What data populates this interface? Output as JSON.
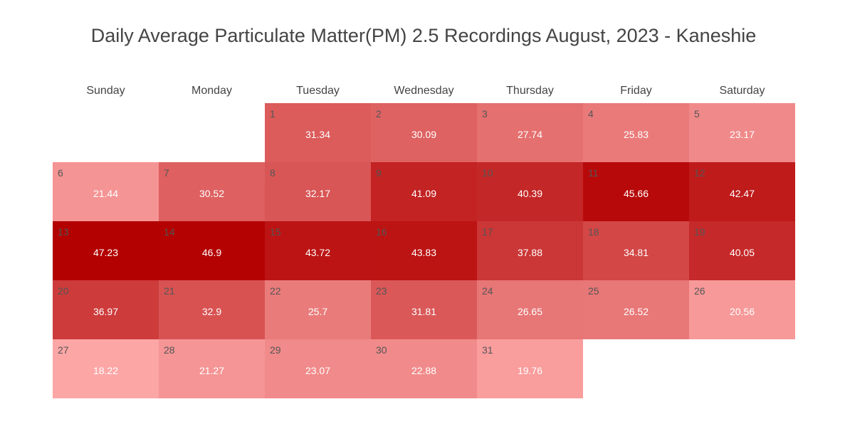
{
  "chart_data": {
    "type": "heatmap",
    "title": "Daily Average Particulate Matter(PM) 2.5 Recordings August, 2023 - Kaneshie",
    "weekdays": [
      "Sunday",
      "Monday",
      "Tuesday",
      "Wednesday",
      "Thursday",
      "Friday",
      "Saturday"
    ],
    "first_weekday_index": 2,
    "days": [
      1,
      2,
      3,
      4,
      5,
      6,
      7,
      8,
      9,
      10,
      11,
      12,
      13,
      14,
      15,
      16,
      17,
      18,
      19,
      20,
      21,
      22,
      23,
      24,
      25,
      26,
      27,
      28,
      29,
      30,
      31
    ],
    "values": [
      31.34,
      30.09,
      27.74,
      25.83,
      23.17,
      21.44,
      30.52,
      32.17,
      41.09,
      40.39,
      45.66,
      42.47,
      47.23,
      46.9,
      43.72,
      43.83,
      37.88,
      34.81,
      40.05,
      36.97,
      32.9,
      25.7,
      31.81,
      26.65,
      26.52,
      20.56,
      18.22,
      21.27,
      23.07,
      22.88,
      19.76
    ],
    "value_labels": [
      "31.34",
      "30.09",
      "27.74",
      "25.83",
      "23.17",
      "21.44",
      "30.52",
      "32.17",
      "41.09",
      "40.39",
      "45.66",
      "42.47",
      "47.23",
      "46.9",
      "43.72",
      "43.83",
      "37.88",
      "34.81",
      "40.05",
      "36.97",
      "32.9",
      "25.7",
      "31.81",
      "26.65",
      "26.52",
      "20.56",
      "18.22",
      "21.27",
      "23.07",
      "22.88",
      "19.76"
    ],
    "color_scale": {
      "low": "#fda6a6",
      "high": "#b30000",
      "domain": [
        18.22,
        47.23
      ]
    },
    "legend": "none",
    "grid": false
  }
}
